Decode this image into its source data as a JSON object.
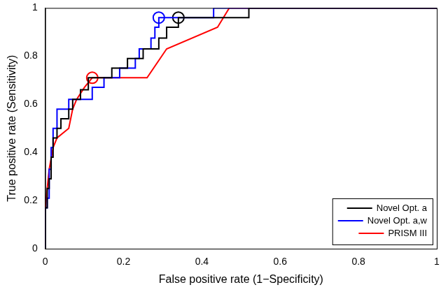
{
  "chart_data": {
    "type": "line",
    "xlabel": "False positive rate (1−Specificity)",
    "ylabel": "True positive rate (Sensitivity)",
    "xlim": [
      0,
      1
    ],
    "xticks": [
      0,
      0.2,
      0.4,
      0.6,
      0.8,
      1
    ],
    "ylim": [
      0,
      1
    ],
    "yticks": [
      0,
      0.2,
      0.4,
      0.6,
      0.8,
      1
    ],
    "grid": false,
    "legend": "lower right",
    "series": [
      {
        "name": "Novel Opt. a",
        "color": "#000000",
        "x": [
          0,
          0,
          0.005,
          0.005,
          0.01,
          0.01,
          0.015,
          0.015,
          0.02,
          0.02,
          0.03,
          0.03,
          0.04,
          0.04,
          0.06,
          0.06,
          0.07,
          0.07,
          0.09,
          0.09,
          0.11,
          0.11,
          0.17,
          0.17,
          0.21,
          0.21,
          0.25,
          0.25,
          0.29,
          0.29,
          0.31,
          0.31,
          0.34,
          0.34,
          0.52,
          0.52,
          1
        ],
        "values": [
          0,
          0.17,
          0.17,
          0.25,
          0.25,
          0.29,
          0.29,
          0.38,
          0.38,
          0.46,
          0.46,
          0.5,
          0.5,
          0.54,
          0.54,
          0.58,
          0.58,
          0.62,
          0.62,
          0.66,
          0.66,
          0.71,
          0.71,
          0.75,
          0.75,
          0.79,
          0.79,
          0.83,
          0.83,
          0.875,
          0.875,
          0.92,
          0.92,
          0.96,
          0.96,
          1,
          1
        ],
        "operating_point": [
          0.34,
          0.96
        ]
      },
      {
        "name": "Novel Opt. a,w",
        "color": "#0000ff",
        "x": [
          0,
          0,
          0.005,
          0.005,
          0.01,
          0.01,
          0.015,
          0.015,
          0.02,
          0.02,
          0.03,
          0.03,
          0.06,
          0.06,
          0.12,
          0.12,
          0.15,
          0.15,
          0.19,
          0.19,
          0.23,
          0.23,
          0.24,
          0.24,
          0.27,
          0.27,
          0.28,
          0.28,
          0.29,
          0.29,
          0.43,
          0.43,
          1
        ],
        "values": [
          0,
          0.17,
          0.17,
          0.21,
          0.21,
          0.33,
          0.33,
          0.42,
          0.42,
          0.5,
          0.5,
          0.58,
          0.58,
          0.62,
          0.62,
          0.67,
          0.67,
          0.71,
          0.71,
          0.75,
          0.75,
          0.79,
          0.79,
          0.83,
          0.83,
          0.875,
          0.875,
          0.92,
          0.92,
          0.96,
          0.96,
          1,
          1
        ],
        "operating_point": [
          0.29,
          0.96
        ]
      },
      {
        "name": "PRISM III",
        "color": "#ff0000",
        "x": [
          0,
          0,
          0.005,
          0.01,
          0.02,
          0.03,
          0.06,
          0.07,
          0.08,
          0.1,
          0.12,
          0.26,
          0.31,
          0.44,
          0.47,
          1
        ],
        "values": [
          0,
          0.17,
          0.25,
          0.33,
          0.42,
          0.46,
          0.5,
          0.58,
          0.62,
          0.67,
          0.71,
          0.71,
          0.83,
          0.92,
          1,
          1
        ],
        "operating_point": [
          0.12,
          0.71
        ]
      }
    ]
  }
}
